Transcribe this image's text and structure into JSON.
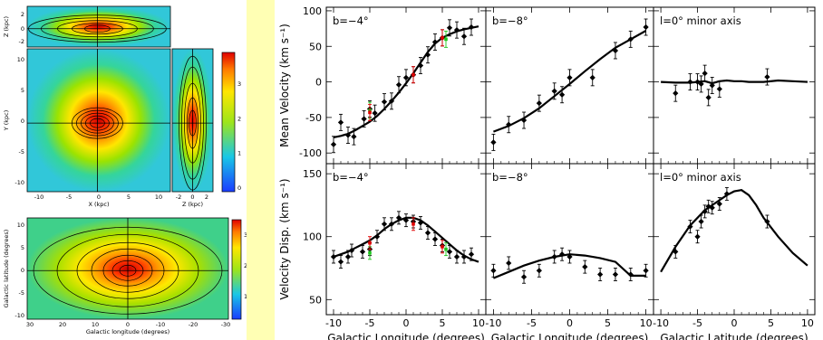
{
  "chart_data": [
    {
      "type": "heatmap",
      "panel": "face-on XY projection",
      "xlabel": "X (kpc)",
      "ylabel": "Y (kpc)",
      "xticks": [
        "-10",
        "-5",
        "0",
        "5",
        "10"
      ],
      "yticks": [
        "-10",
        "-5",
        "0",
        "5",
        "10"
      ],
      "colorbar_ticks": [
        "0",
        "1",
        "2",
        "3"
      ]
    },
    {
      "type": "heatmap",
      "panel": "edge-on XZ projection",
      "ylabel": "Z (kpc)",
      "yticks": [
        "-2",
        "0",
        "2"
      ]
    },
    {
      "type": "heatmap",
      "panel": "edge-on YZ projection",
      "xlabel": "Z (kpc)",
      "xticks": [
        "-2",
        "0",
        "2"
      ]
    },
    {
      "type": "heatmap",
      "panel": "sky projection",
      "xlabel": "Galactic longitude (degrees)",
      "ylabel": "Galactic latitude (degrees)",
      "xticks": [
        "30",
        "20",
        "10",
        "0",
        "-10",
        "-20",
        "-30"
      ],
      "yticks": [
        "-10",
        "-5",
        "0",
        "5",
        "10"
      ],
      "colorbar_ticks": [
        "1",
        "2",
        "3"
      ]
    },
    {
      "type": "scatter",
      "panel": "b=-4° mean velocity",
      "label": "b=−4°",
      "ylabel": "Mean Velocity  (km s⁻¹)",
      "xlim": [
        -11,
        11
      ],
      "ylim": [
        -115,
        105
      ],
      "yticks": [
        -100,
        -50,
        0,
        50,
        100
      ],
      "points_black": [
        [
          -10,
          -88
        ],
        [
          -9,
          -57
        ],
        [
          -8,
          -75
        ],
        [
          -7.2,
          -77
        ],
        [
          -5.8,
          -52
        ],
        [
          -5,
          -38
        ],
        [
          -4.3,
          -44
        ],
        [
          -3,
          -28
        ],
        [
          -2,
          -27
        ],
        [
          -1,
          -4
        ],
        [
          0,
          6
        ],
        [
          1,
          10
        ],
        [
          2,
          23
        ],
        [
          3,
          38
        ],
        [
          4,
          56
        ],
        [
          5,
          62
        ],
        [
          6,
          76
        ],
        [
          7,
          73
        ],
        [
          8,
          64
        ],
        [
          9,
          77
        ]
      ],
      "points_green": [
        [
          -5,
          -40
        ],
        [
          5.5,
          60
        ]
      ],
      "points_red": [
        [
          -5,
          -43
        ],
        [
          1,
          10
        ],
        [
          5,
          62
        ]
      ],
      "model_x": [
        -10,
        -9,
        -8,
        -7,
        -6,
        -5,
        -4,
        -3,
        -2,
        -1,
        0,
        1,
        2,
        3,
        4,
        5,
        6,
        7,
        8,
        9,
        10
      ],
      "model_y": [
        -78,
        -76,
        -73,
        -68,
        -62,
        -56,
        -48,
        -38,
        -27,
        -15,
        -2,
        12,
        27,
        42,
        54,
        62,
        67,
        71,
        74,
        76,
        78
      ]
    },
    {
      "type": "scatter",
      "panel": "b=-8° mean velocity",
      "label": "b=−8°",
      "xlim": [
        -11,
        11
      ],
      "ylim": [
        -115,
        105
      ],
      "points_black": [
        [
          -10,
          -85
        ],
        [
          -8,
          -60
        ],
        [
          -6,
          -54
        ],
        [
          -4,
          -30
        ],
        [
          -2,
          -13
        ],
        [
          -1,
          -18
        ],
        [
          0,
          6
        ],
        [
          3,
          6
        ],
        [
          6,
          44
        ],
        [
          8,
          60
        ],
        [
          10,
          77
        ]
      ],
      "model_x": [
        -10,
        -8,
        -6,
        -4,
        -2,
        0,
        2,
        4,
        6,
        8,
        10
      ],
      "model_y": [
        -70,
        -62,
        -51,
        -37,
        -20,
        -3,
        15,
        32,
        48,
        60,
        72
      ]
    },
    {
      "type": "scatter",
      "panel": "l=0° minor axis mean velocity",
      "label": "l=0° minor axis",
      "xlim": [
        -11,
        11
      ],
      "ylim": [
        -115,
        105
      ],
      "points_black": [
        [
          -8,
          -16
        ],
        [
          -6,
          0
        ],
        [
          -5,
          0
        ],
        [
          -4.5,
          -3
        ],
        [
          -4,
          12
        ],
        [
          -3.5,
          -22
        ],
        [
          -3,
          -5
        ],
        [
          -2,
          -10
        ],
        [
          4.5,
          7
        ]
      ],
      "model_x": [
        -10,
        -8,
        -6,
        -4,
        -3,
        -2,
        -1,
        0,
        1,
        2,
        4,
        6,
        8,
        10
      ],
      "model_y": [
        0,
        -1,
        -1,
        1,
        -2,
        1,
        2,
        1,
        1,
        0,
        0,
        2,
        1,
        0
      ]
    },
    {
      "type": "scatter",
      "panel": "b=-4° velocity dispersion",
      "label": "b=−4°",
      "ylabel": "Velocity Disp.  (km s⁻¹)",
      "xlabel": "Galactic Longitude (degrees)",
      "xlim": [
        -11,
        11
      ],
      "ylim": [
        38,
        158
      ],
      "yticks": [
        50,
        100,
        150
      ],
      "xticks": [
        -10,
        -5,
        0,
        5,
        10
      ],
      "points_black": [
        [
          -10,
          84
        ],
        [
          -9,
          80
        ],
        [
          -8,
          84
        ],
        [
          -7.5,
          89
        ],
        [
          -6,
          88
        ],
        [
          -5,
          90
        ],
        [
          -4,
          100
        ],
        [
          -3,
          110
        ],
        [
          -2,
          110
        ],
        [
          -1,
          115
        ],
        [
          0,
          113
        ],
        [
          1,
          112
        ],
        [
          2,
          111
        ],
        [
          3,
          103
        ],
        [
          4,
          98
        ],
        [
          5,
          93
        ],
        [
          6,
          88
        ],
        [
          7,
          84
        ],
        [
          8,
          84
        ],
        [
          9,
          86
        ]
      ],
      "points_green": [
        [
          -5,
          87
        ],
        [
          5.5,
          90
        ]
      ],
      "points_red": [
        [
          -5,
          95
        ],
        [
          1,
          110
        ],
        [
          5,
          92
        ]
      ],
      "model_x": [
        -10,
        -9,
        -8,
        -7,
        -6,
        -5,
        -4,
        -3,
        -2,
        -1,
        0,
        1,
        2,
        3,
        4,
        5,
        6,
        7,
        8,
        9,
        10
      ],
      "model_y": [
        84,
        86,
        88,
        91,
        94,
        97,
        101,
        106,
        110,
        113,
        115,
        115,
        113,
        109,
        104,
        99,
        94,
        89,
        85,
        82,
        80
      ]
    },
    {
      "type": "scatter",
      "panel": "b=-8° velocity dispersion",
      "label": "b=−8°",
      "xlabel": "Galactic Longitude (degrees)",
      "xlim": [
        -11,
        11
      ],
      "ylim": [
        38,
        158
      ],
      "xticks": [
        -10,
        -5,
        0,
        5,
        10
      ],
      "points_black": [
        [
          -10,
          73
        ],
        [
          -8,
          79
        ],
        [
          -6,
          68
        ],
        [
          -4,
          73
        ],
        [
          -2,
          84
        ],
        [
          -1,
          86
        ],
        [
          0,
          84
        ],
        [
          2,
          76
        ],
        [
          4,
          70
        ],
        [
          6,
          70
        ],
        [
          8,
          70
        ],
        [
          10,
          73
        ]
      ],
      "model_x": [
        -10,
        -8,
        -6,
        -4,
        -2,
        0,
        2,
        4,
        6,
        8,
        10
      ],
      "model_y": [
        67,
        72,
        77,
        81,
        84,
        86,
        85,
        83,
        80,
        69,
        69
      ]
    },
    {
      "type": "scatter",
      "panel": "l=0° minor axis velocity dispersion",
      "label": "l=0° minor axis",
      "xlabel": "Galactic Latitude (degrees)",
      "xlim": [
        -11,
        11
      ],
      "ylim": [
        38,
        158
      ],
      "xticks": [
        -10,
        -5,
        0,
        5,
        10
      ],
      "points_black": [
        [
          -8,
          88
        ],
        [
          -6,
          108
        ],
        [
          -5,
          100
        ],
        [
          -4.5,
          112
        ],
        [
          -4,
          120
        ],
        [
          -3.5,
          124
        ],
        [
          -3,
          123
        ],
        [
          -2,
          126
        ],
        [
          -1,
          134
        ],
        [
          4.5,
          112
        ]
      ],
      "model_x": [
        -10,
        -8,
        -6,
        -4,
        -2,
        -1,
        0,
        1,
        2,
        3,
        4,
        6,
        8,
        10
      ],
      "model_y": [
        72,
        92,
        109,
        121,
        129,
        133,
        136,
        137,
        133,
        125,
        115,
        100,
        87,
        77
      ]
    }
  ]
}
